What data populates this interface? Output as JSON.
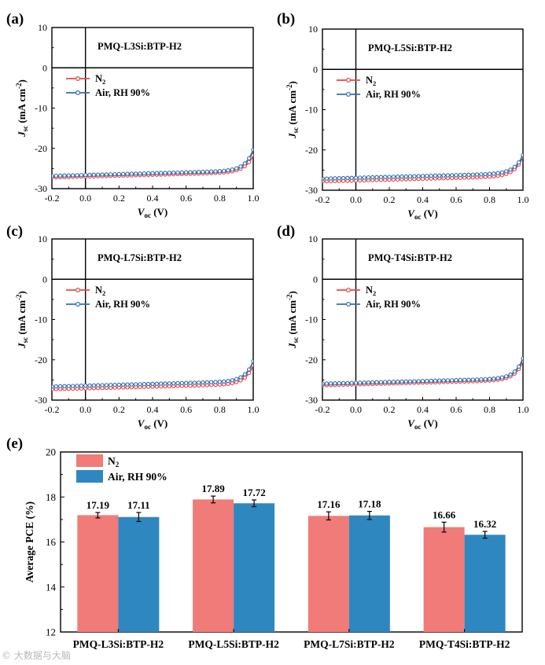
{
  "chart_data": [
    {
      "type": "line",
      "panel_label": "(a)",
      "device": "PMQ-L3Si:BTP-H2",
      "x_axis": {
        "var": "V",
        "sub": "oc",
        "unit": " (V)",
        "ticks": [
          "-0.2",
          "0.0",
          "0.2",
          "0.4",
          "0.6",
          "0.8",
          "1.0"
        ],
        "lim": [
          -0.2,
          1.0
        ]
      },
      "y_axis": {
        "var": "J",
        "sub": "sc",
        "unit_a": " (mA cm",
        "sup": "-2",
        "unit_b": ")",
        "ticks": [
          "-30",
          "-20",
          "-10",
          "0",
          "10"
        ],
        "lim": [
          -30,
          10
        ]
      },
      "series": [
        {
          "name": "N",
          "name_sub": "2",
          "color": "#e8474a",
          "jsc": -26.5,
          "voc": 0.894,
          "m": 0.05
        },
        {
          "name": "Air, RH 90%",
          "name_sub": "",
          "color": "#2f6fb7",
          "jsc": -26.1,
          "voc": 0.888,
          "m": 0.048
        }
      ]
    },
    {
      "type": "line",
      "panel_label": "(b)",
      "device": "PMQ-L5Si:BTP-H2",
      "x_axis": {
        "var": "V",
        "sub": "oc",
        "unit": " (V)",
        "ticks": [
          "-0.2",
          "0.0",
          "0.2",
          "0.4",
          "0.6",
          "0.8",
          "1.0"
        ],
        "lim": [
          -0.2,
          1.0
        ]
      },
      "y_axis": {
        "var": "J",
        "sub": "sc",
        "unit_a": " (mA cm",
        "sup": "-2",
        "unit_b": ")",
        "ticks": [
          "-30",
          "-20",
          "-10",
          "0",
          "10"
        ],
        "lim": [
          -30,
          10
        ]
      },
      "series": [
        {
          "name": "N",
          "name_sub": "2",
          "color": "#e8474a",
          "jsc": -27.1,
          "voc": 0.887,
          "m": 0.05
        },
        {
          "name": "Air, RH 90%",
          "name_sub": "",
          "color": "#2f6fb7",
          "jsc": -26.4,
          "voc": 0.89,
          "m": 0.05
        }
      ]
    },
    {
      "type": "line",
      "panel_label": "(c)",
      "device": "PMQ-L7Si:BTP-H2",
      "x_axis": {
        "var": "V",
        "sub": "oc",
        "unit": " (V)",
        "ticks": [
          "-0.2",
          "0.0",
          "0.2",
          "0.4",
          "0.6",
          "0.8",
          "1.0"
        ],
        "lim": [
          -0.2,
          1.0
        ]
      },
      "y_axis": {
        "var": "J",
        "sub": "sc",
        "unit_a": " (mA cm",
        "sup": "-2",
        "unit_b": ")",
        "ticks": [
          "-30",
          "-20",
          "-10",
          "0",
          "10"
        ],
        "lim": [
          -30,
          10
        ]
      },
      "series": [
        {
          "name": "N",
          "name_sub": "2",
          "color": "#e8474a",
          "jsc": -26.6,
          "voc": 0.893,
          "m": 0.048
        },
        {
          "name": "Air, RH 90%",
          "name_sub": "",
          "color": "#2f6fb7",
          "jsc": -25.9,
          "voc": 0.89,
          "m": 0.048
        }
      ]
    },
    {
      "type": "line",
      "panel_label": "(d)",
      "device": "PMQ-T4Si:BTP-H2",
      "x_axis": {
        "var": "V",
        "sub": "oc",
        "unit": " (V)",
        "ticks": [
          "-0.2",
          "0.0",
          "0.2",
          "0.4",
          "0.6",
          "0.8",
          "1.0"
        ],
        "lim": [
          -0.2,
          1.0
        ]
      },
      "y_axis": {
        "var": "J",
        "sub": "sc",
        "unit_a": " (mA cm",
        "sup": "-2",
        "unit_b": ")",
        "ticks": [
          "-30",
          "-20",
          "-10",
          "0",
          "10"
        ],
        "lim": [
          -30,
          10
        ]
      },
      "series": [
        {
          "name": "N",
          "name_sub": "2",
          "color": "#e8474a",
          "jsc": -25.6,
          "voc": 0.893,
          "m": 0.048
        },
        {
          "name": "Air, RH 90%",
          "name_sub": "",
          "color": "#2f6fb7",
          "jsc": -25.2,
          "voc": 0.89,
          "m": 0.048
        }
      ]
    },
    {
      "type": "bar",
      "panel_label": "(e)",
      "categories": [
        "PMQ-L3Si:BTP-H2",
        "PMQ-L5Si:BTP-H2",
        "PMQ-L7Si:BTP-H2",
        "PMQ-T4Si:BTP-H2"
      ],
      "ylabel": "Average PCE (%)",
      "ylim": [
        12,
        20
      ],
      "yticks": [
        "12",
        "14",
        "16",
        "18",
        "20"
      ],
      "series": [
        {
          "name": "N",
          "name_sub": "2",
          "color": "#f07b79",
          "values": [
            17.19,
            17.89,
            17.16,
            16.66
          ],
          "labels": [
            "17.19",
            "17.89",
            "17.16",
            "16.66"
          ],
          "errors": [
            0.12,
            0.15,
            0.18,
            0.22
          ]
        },
        {
          "name": "Air, RH 90%",
          "name_sub": "",
          "color": "#2f87c0",
          "values": [
            17.11,
            17.72,
            17.18,
            16.32
          ],
          "labels": [
            "17.11",
            "17.72",
            "17.18",
            "16.32"
          ],
          "errors": [
            0.2,
            0.15,
            0.18,
            0.15
          ]
        }
      ]
    }
  ],
  "watermark": "© 大数据与大脑"
}
